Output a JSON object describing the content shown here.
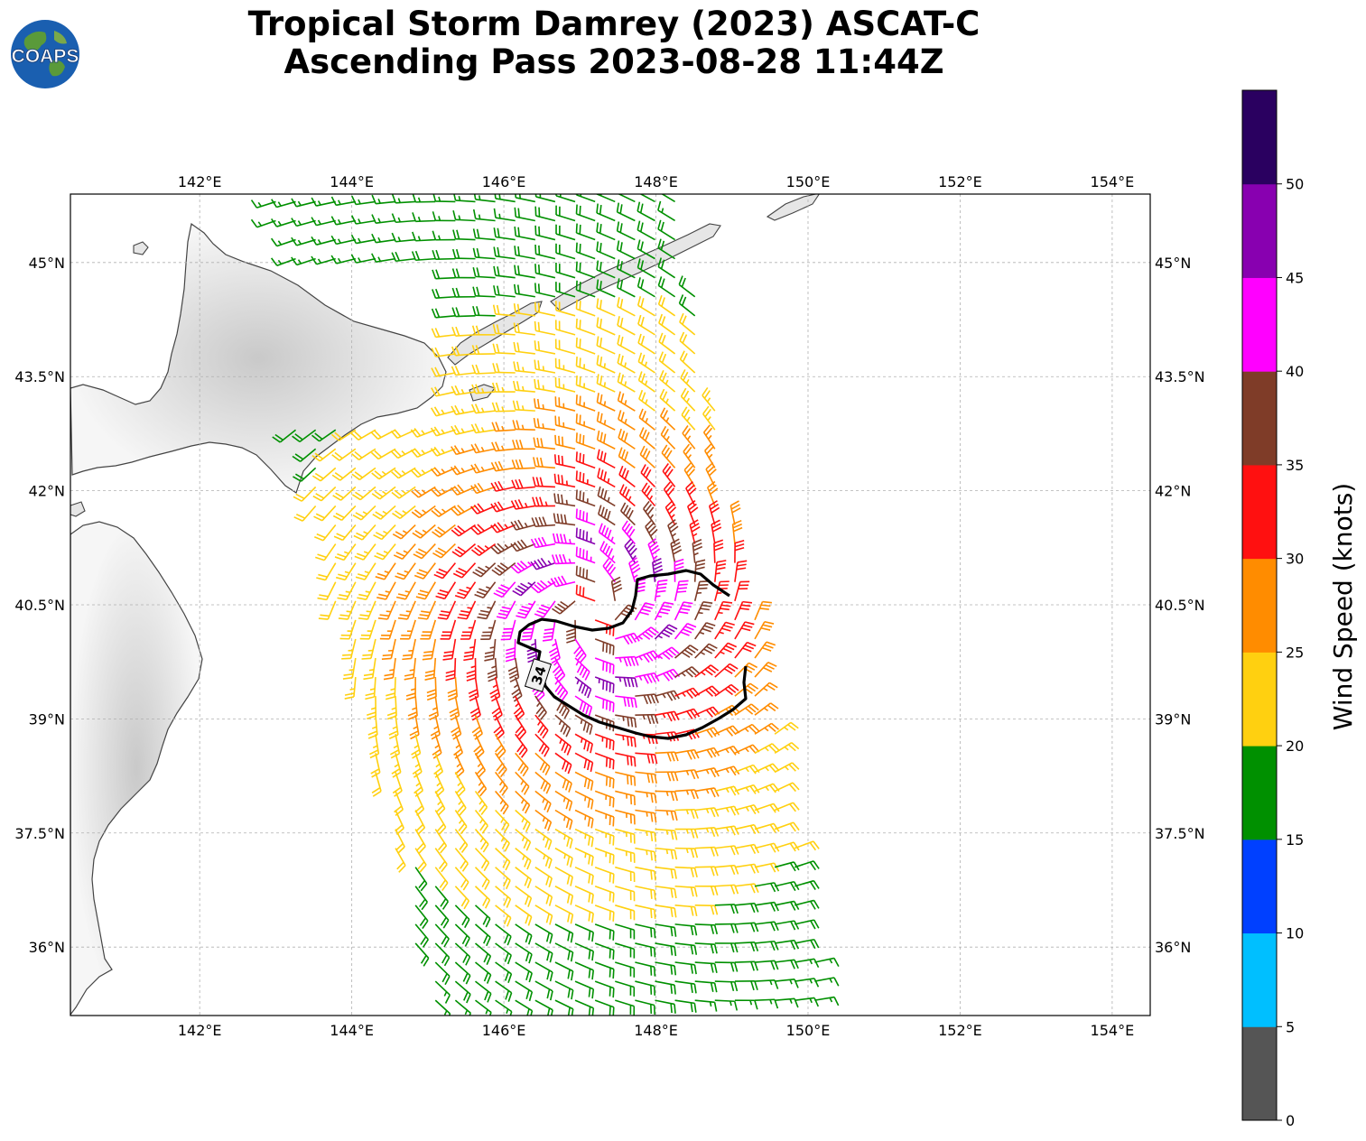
{
  "title": {
    "line1": "Tropical Storm Damrey (2023) ASCAT-C",
    "line2": "Ascending Pass 2023-08-28 11:44Z"
  },
  "logo": {
    "text": "COAPS",
    "icon": "globe-logo-icon"
  },
  "map": {
    "lon_ticks": [
      "142°E",
      "144°E",
      "146°E",
      "148°E",
      "150°E",
      "152°E",
      "154°E"
    ],
    "lat_ticks": [
      "45°N",
      "43.5°N",
      "42°N",
      "40.5°N",
      "39°N",
      "37.5°N",
      "36°N"
    ],
    "lon_values": [
      142,
      144,
      146,
      148,
      150,
      152,
      154
    ],
    "lat_values": [
      45,
      43.5,
      42,
      40.5,
      39,
      37.5,
      36
    ],
    "lon_range": [
      140.3,
      154.5
    ],
    "lat_range": [
      35.1,
      45.9
    ],
    "gridlines": true,
    "contour_label": "34",
    "storm_center": {
      "lon": 147.2,
      "lat": 40.4
    }
  },
  "colorbar": {
    "label": "Wind Speed (knots)",
    "ticks": [
      "0",
      "5",
      "10",
      "15",
      "20",
      "25",
      "30",
      "35",
      "40",
      "45",
      "50"
    ],
    "colors": [
      "#555555",
      "#00bfff",
      "#0040ff",
      "#009000",
      "#ffd010",
      "#ff8c00",
      "#ff1010",
      "#7f3c28",
      "#ff00ff",
      "#8800b0",
      "#2a0060"
    ]
  }
}
